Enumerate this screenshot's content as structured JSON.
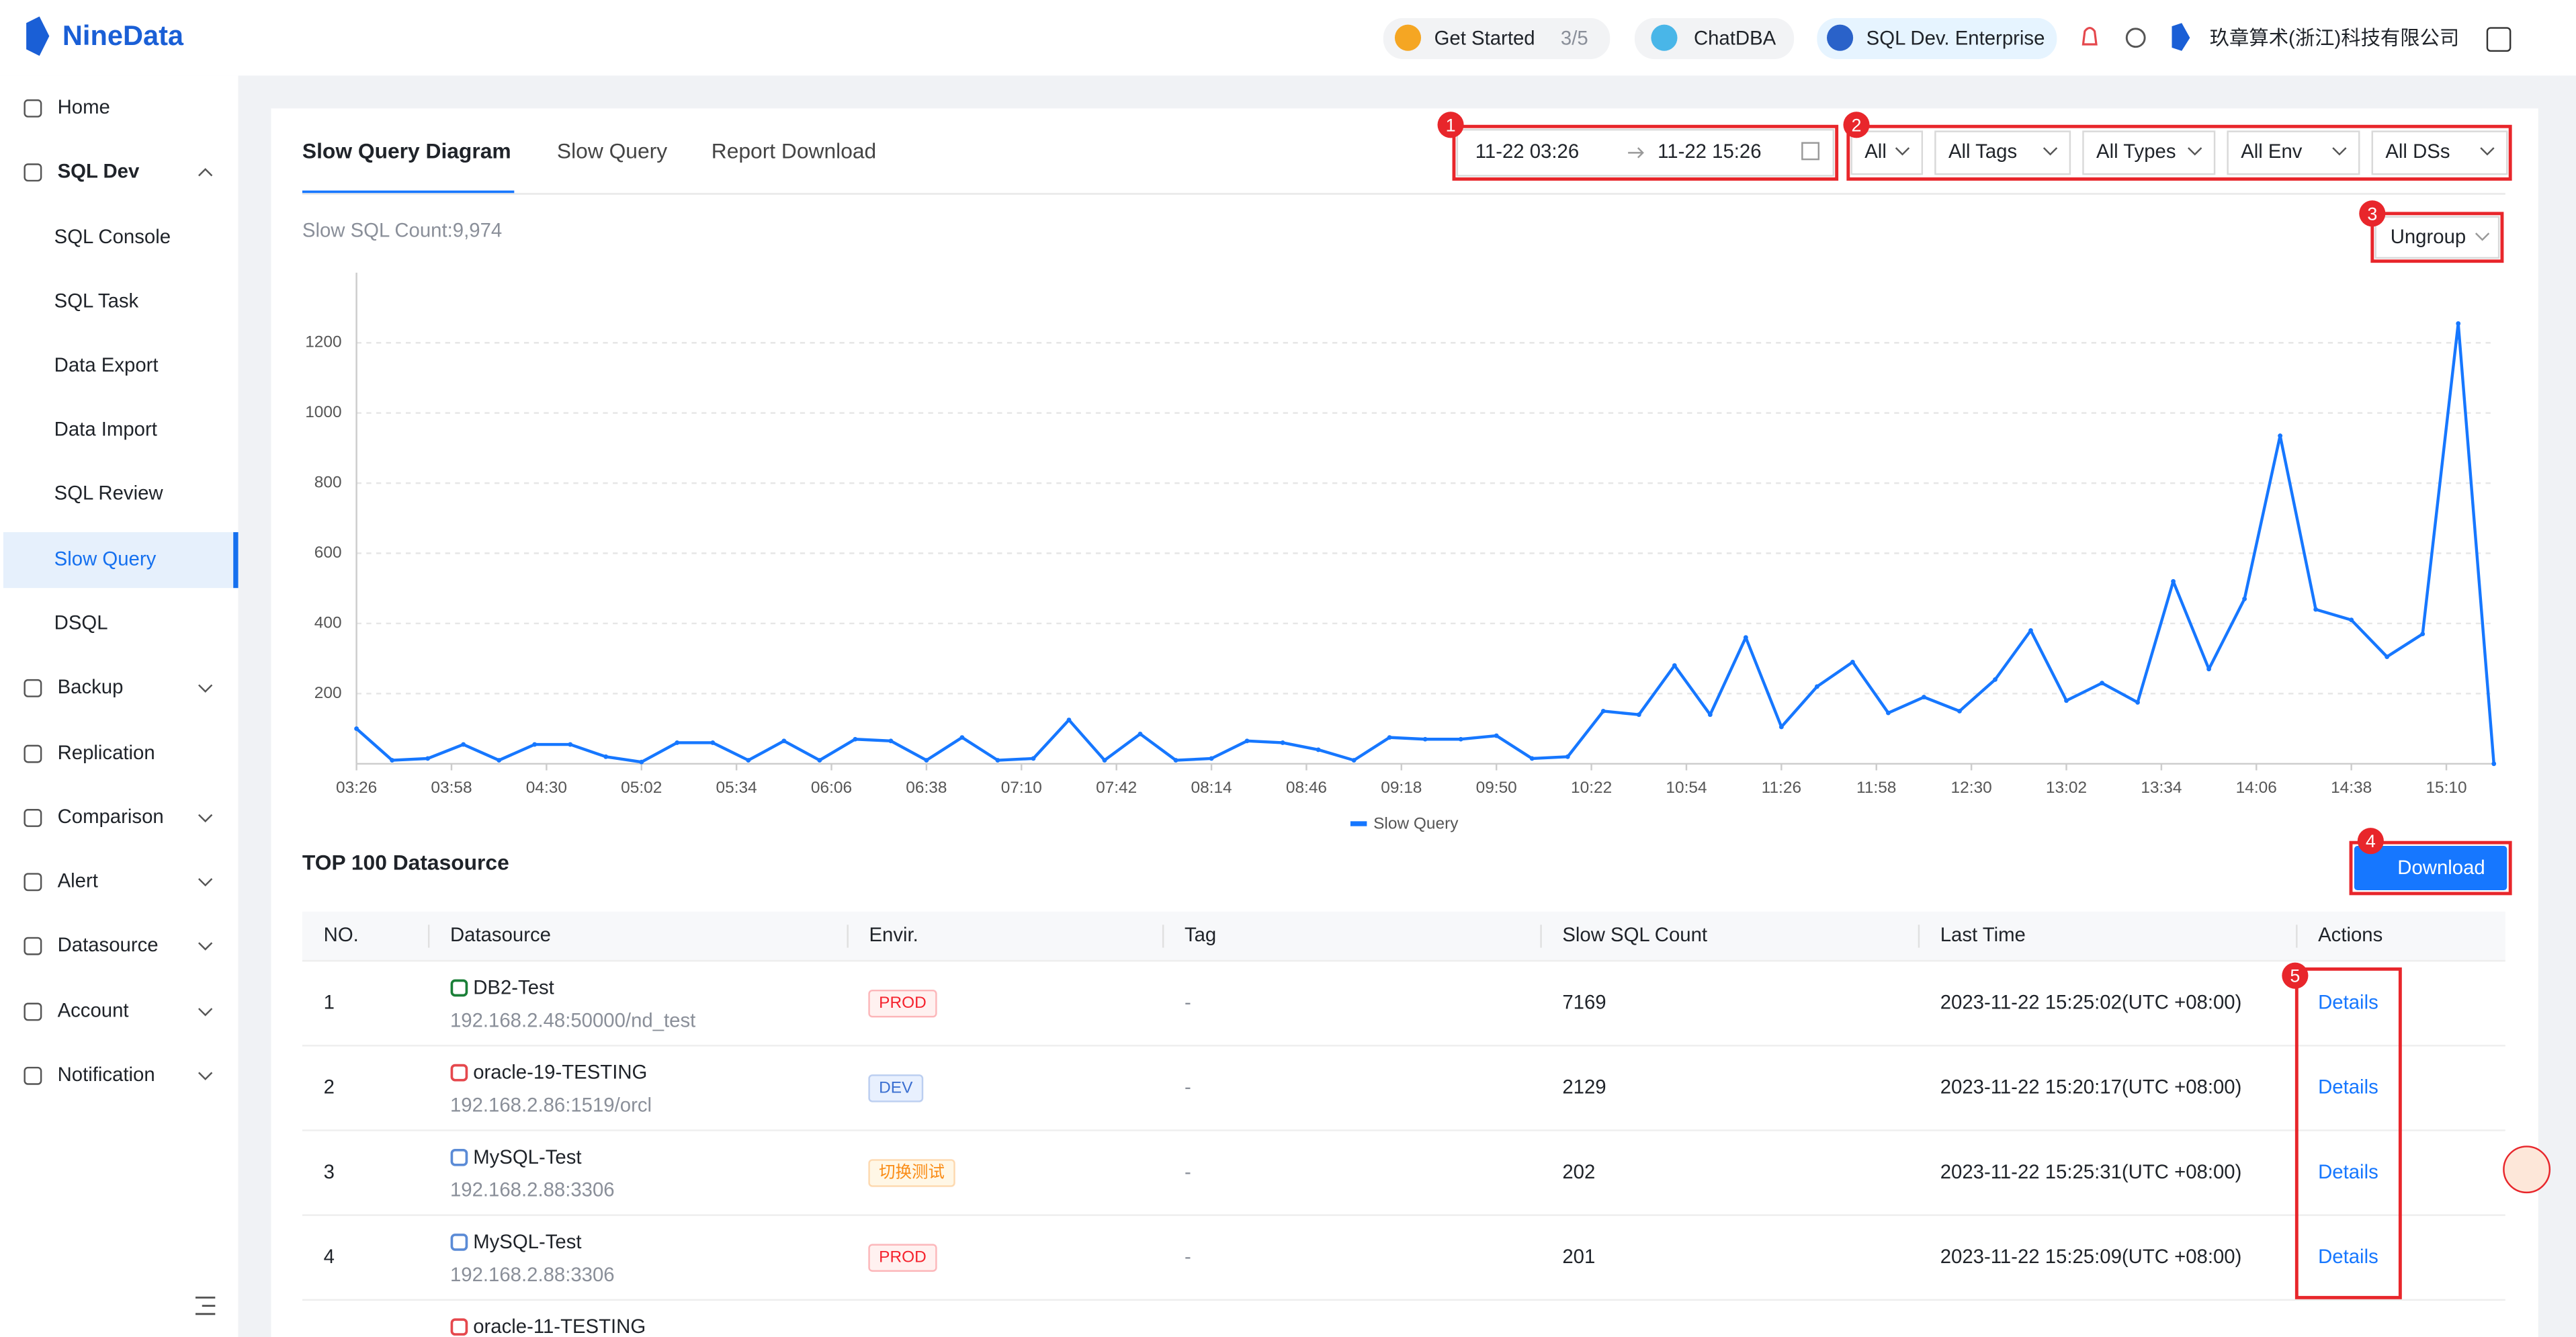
{
  "header": {
    "logo": "NineData",
    "get_started": "Get Started",
    "progress": "3/5",
    "chatdba": "ChatDBA",
    "edition": "SQL Dev. Enterprise",
    "company": "玖章算术(浙江)科技有限公司"
  },
  "sidebar": {
    "items": [
      "Home",
      "SQL Dev",
      "SQL Console",
      "SQL Task",
      "Data Export",
      "Data Import",
      "SQL Review",
      "Slow Query",
      "DSQL",
      "Backup",
      "Replication",
      "Comparison",
      "Alert",
      "Datasource",
      "Account",
      "Notification"
    ]
  },
  "tabs": [
    "Slow Query Diagram",
    "Slow Query",
    "Report Download"
  ],
  "filters": {
    "start": "11-22 03:26",
    "end": "11-22 15:26",
    "selects": [
      "All",
      "All Tags",
      "All Types",
      "All Env",
      "All DSs"
    ],
    "group": "Ungroup"
  },
  "annotations": [
    "1",
    "2",
    "3",
    "4",
    "5"
  ],
  "summary": "Slow SQL Count:9,974",
  "chart_data": {
    "type": "line",
    "x": [
      "03:26",
      "03:38",
      "03:50",
      "04:02",
      "04:14",
      "04:26",
      "04:38",
      "04:50",
      "05:02",
      "05:14",
      "05:26",
      "05:38",
      "05:50",
      "06:02",
      "06:14",
      "06:26",
      "06:38",
      "06:50",
      "07:02",
      "07:14",
      "07:26",
      "07:38",
      "07:50",
      "08:02",
      "08:14",
      "08:26",
      "08:38",
      "08:50",
      "09:02",
      "09:14",
      "09:26",
      "09:38",
      "09:50",
      "10:02",
      "10:14",
      "10:26",
      "10:38",
      "10:50",
      "11:02",
      "11:14",
      "11:26",
      "11:38",
      "11:50",
      "12:02",
      "12:14",
      "12:26",
      "12:38",
      "12:50",
      "13:02",
      "13:14",
      "13:26",
      "13:38",
      "13:50",
      "14:02",
      "14:14",
      "14:26",
      "14:38",
      "14:50",
      "15:02",
      "15:14",
      "15:26"
    ],
    "series": [
      {
        "name": "Slow Query",
        "color": "#1677ff",
        "values": [
          100,
          10,
          15,
          55,
          10,
          55,
          55,
          20,
          5,
          60,
          60,
          10,
          65,
          10,
          70,
          65,
          10,
          75,
          10,
          15,
          125,
          10,
          85,
          10,
          15,
          65,
          60,
          40,
          10,
          75,
          70,
          70,
          80,
          15,
          20,
          150,
          140,
          280,
          140,
          360,
          105,
          220,
          290,
          145,
          190,
          150,
          240,
          380,
          180,
          230,
          175,
          520,
          270,
          470,
          935,
          440,
          410,
          305,
          370,
          1255,
          0
        ]
      }
    ],
    "xlim": [
      "03:26",
      "15:26"
    ],
    "xticks": [
      "03:26",
      "03:58",
      "04:30",
      "05:02",
      "05:34",
      "06:06",
      "06:38",
      "07:10",
      "07:42",
      "08:14",
      "08:46",
      "09:18",
      "09:50",
      "10:22",
      "10:54",
      "11:26",
      "11:58",
      "12:30",
      "13:02",
      "13:34",
      "14:06",
      "14:38",
      "15:10"
    ],
    "ylim": [
      0,
      1400
    ],
    "yticks": [
      200,
      400,
      600,
      800,
      1000,
      1200
    ],
    "grid": true
  },
  "table": {
    "title": "TOP 100 Datasource",
    "button": "Download",
    "columns": [
      "NO.",
      "Datasource",
      "Envir.",
      "Tag",
      "Slow SQL Count",
      "Last Time",
      "Actions"
    ],
    "rows": [
      {
        "no": 1,
        "name": "DB2-Test",
        "address": "192.168.2.48:50000/nd_test",
        "env": "PROD",
        "tag": "-",
        "count": 7169,
        "last_time": "2023-11-22 15:25:02(UTC +08:00)",
        "action": "Details"
      },
      {
        "no": 2,
        "name": "oracle-19-TESTING",
        "address": "192.168.2.86:1519/orcl",
        "env": "DEV",
        "tag": "-",
        "count": 2129,
        "last_time": "2023-11-22 15:20:17(UTC +08:00)",
        "action": "Details"
      },
      {
        "no": 3,
        "name": "MySQL-Test",
        "address": "192.168.2.88:3306",
        "env": "切换测试",
        "tag": "-",
        "count": 202,
        "last_time": "2023-11-22 15:25:31(UTC +08:00)",
        "action": "Details"
      },
      {
        "no": 4,
        "name": "MySQL-Test",
        "address": "192.168.2.88:3306",
        "env": "PROD",
        "tag": "-",
        "count": 201,
        "last_time": "2023-11-22 15:25:09(UTC +08:00)",
        "action": "Details"
      },
      {
        "name": "oracle-11-TESTING"
      }
    ]
  }
}
